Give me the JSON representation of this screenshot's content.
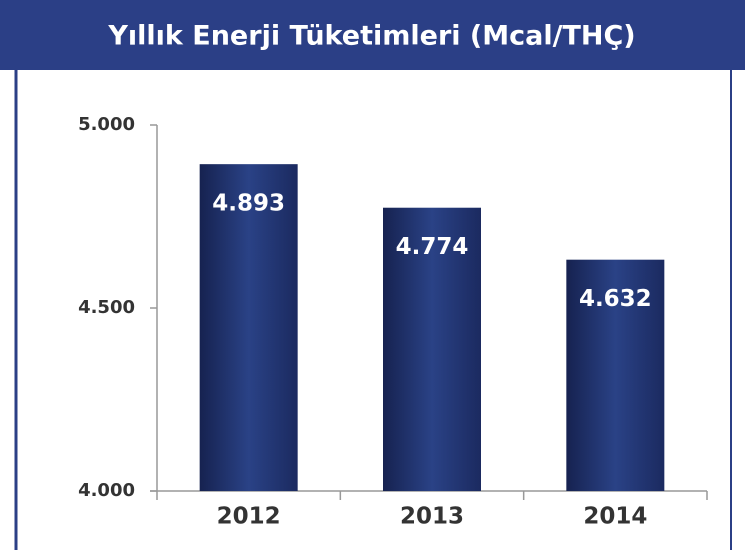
{
  "chart_data": {
    "type": "bar",
    "title": "Yıllık Enerji Tüketimleri (Mcal/THÇ)",
    "categories": [
      "2012",
      "2013",
      "2014"
    ],
    "values": [
      4893,
      4774,
      4632
    ],
    "value_labels": [
      "4.893",
      "4.774",
      "4.632"
    ],
    "color": "#24397a",
    "ylim": [
      4000,
      5000
    ],
    "yticks": [
      {
        "value": 4000,
        "label": "4.000"
      },
      {
        "value": 4500,
        "label": "4.500"
      },
      {
        "value": 5000,
        "label": "5.000"
      }
    ]
  }
}
